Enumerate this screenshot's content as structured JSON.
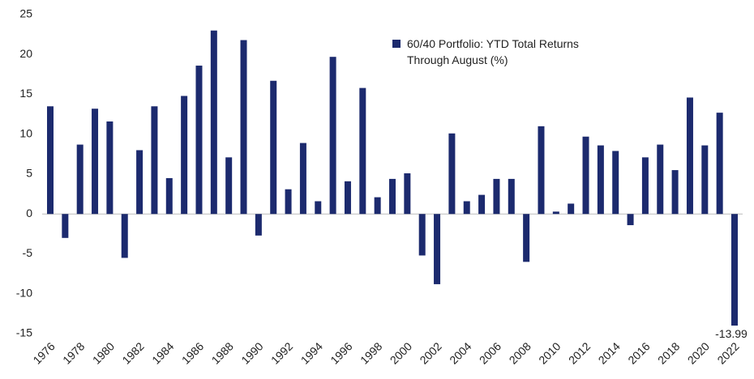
{
  "chart_data": {
    "type": "bar",
    "categories": [
      "1976",
      null,
      "1978",
      null,
      "1980",
      null,
      "1982",
      null,
      "1984",
      null,
      "1986",
      null,
      "1988",
      null,
      "1990",
      null,
      "1992",
      null,
      "1994",
      null,
      "1996",
      null,
      "1998",
      null,
      "2000",
      null,
      "2002",
      null,
      "2004",
      null,
      "2006",
      null,
      "2008",
      null,
      "2010",
      null,
      "2012",
      null,
      "2014",
      null,
      "2016",
      null,
      "2018",
      null,
      "2020",
      null,
      "2022"
    ],
    "series": [
      {
        "name": "60/40 Portfolio: YTD Total Returns Through August (%)",
        "color": "#1c2a6e",
        "values": [
          13.5,
          -3,
          8.7,
          13.2,
          11.6,
          -5.5,
          8,
          13.5,
          4.5,
          14.8,
          18.6,
          23,
          7.1,
          21.8,
          -2.7,
          16.7,
          3.1,
          8.9,
          1.6,
          19.7,
          4.1,
          15.8,
          2.1,
          4.4,
          5.1,
          -5.2,
          -8.8,
          10.1,
          1.6,
          2.4,
          4.4,
          4.4,
          -6,
          11,
          0.3,
          1.3,
          9.7,
          8.6,
          7.9,
          -1.4,
          7.1,
          8.7,
          5.5,
          14.6,
          8.6,
          12.7,
          -13.99
        ],
        "value_labels": [
          null,
          null,
          null,
          null,
          null,
          null,
          null,
          null,
          null,
          null,
          null,
          null,
          null,
          null,
          null,
          null,
          null,
          null,
          null,
          null,
          null,
          null,
          null,
          null,
          null,
          null,
          null,
          null,
          null,
          null,
          null,
          null,
          null,
          null,
          null,
          null,
          null,
          null,
          null,
          null,
          null,
          null,
          null,
          null,
          null,
          null,
          "-13.99"
        ]
      }
    ],
    "ylim": [
      -15,
      25
    ],
    "yticks": [
      -15,
      -10,
      -5,
      0,
      5,
      10,
      15,
      20,
      25
    ],
    "grid": false,
    "legend": "top"
  }
}
